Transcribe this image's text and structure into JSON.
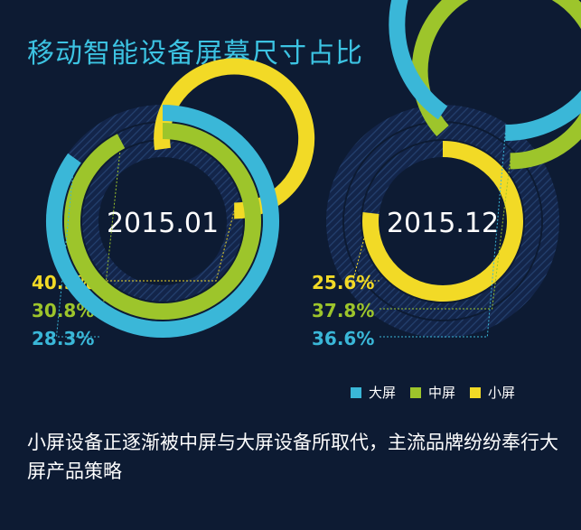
{
  "title": "移动智能设备屏幕尺寸占比",
  "colors": {
    "large": "#3ab7d8",
    "medium": "#9dc52b",
    "small": "#f2da26",
    "background": "#0d1b33",
    "title": "#3cc3e2"
  },
  "legend": [
    {
      "label": "大屏",
      "color": "#3ab7d8"
    },
    {
      "label": "中屏",
      "color": "#9dc52b"
    },
    {
      "label": "小屏",
      "color": "#f2da26"
    }
  ],
  "footer": "小屏设备正逐渐被中屏与大屏设备所取代，主流品牌纷纷奉行大屏产品策略",
  "chart_data": [
    {
      "type": "pie",
      "title": "2015.01",
      "series": [
        {
          "name": "小屏",
          "value": 40.9,
          "label": "40.9%"
        },
        {
          "name": "中屏",
          "value": 30.8,
          "label": "30.8%"
        },
        {
          "name": "大屏",
          "value": 28.3,
          "label": "28.3%"
        }
      ]
    },
    {
      "type": "pie",
      "title": "2015.12",
      "series": [
        {
          "name": "小屏",
          "value": 25.6,
          "label": "25.6%"
        },
        {
          "name": "中屏",
          "value": 37.8,
          "label": "37.8%"
        },
        {
          "name": "大屏",
          "value": 36.6,
          "label": "36.6%"
        }
      ]
    }
  ]
}
